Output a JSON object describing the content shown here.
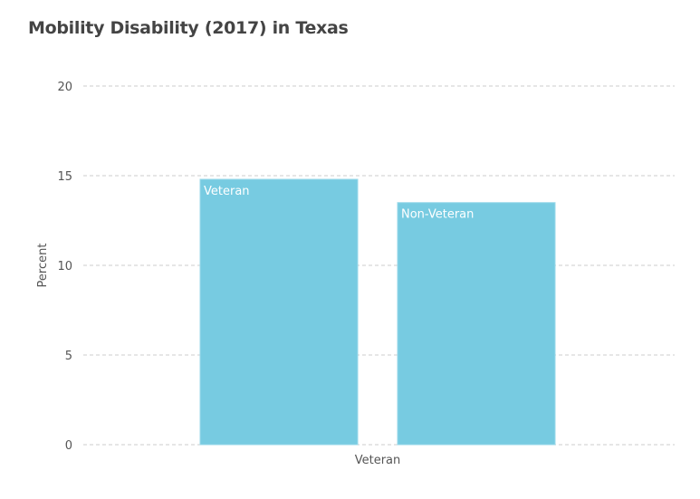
{
  "chart_data": {
    "type": "bar",
    "title": "Mobility Disability (2017) in Texas",
    "xlabel": "Veteran",
    "ylabel": "Percent",
    "ylim": [
      0,
      20
    ],
    "yticks": [
      0,
      5,
      10,
      15,
      20
    ],
    "grid": true,
    "categories": [
      "Veteran",
      "Non-Veteran"
    ],
    "values": [
      14.8,
      13.5
    ],
    "bar_color": "#77cbe1"
  }
}
